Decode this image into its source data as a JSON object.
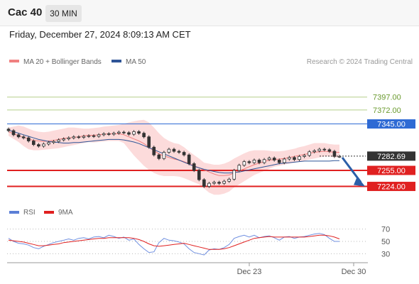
{
  "header": {
    "symbol": "Cac 40",
    "timeframe": "30 MIN",
    "datetime": "Friday, December 27, 2024 8:09:13 AM CET"
  },
  "chart_data": [
    {
      "type": "line",
      "panel": "price",
      "legend": [
        {
          "name": "MA 20 + Bollinger Bands",
          "color": "#f08080"
        },
        {
          "name": "MA 50",
          "color": "#2f5597"
        }
      ],
      "legend_placement": "top-left",
      "credit": "Research © 2024 Trading Central",
      "x_ticks": [
        "Dec 23",
        "Dec 30"
      ],
      "levels": [
        {
          "value": "7397.00",
          "line_color": "#b5cf8a",
          "label_style": "plain",
          "text_color": "#6a9a2e"
        },
        {
          "value": "7372.00",
          "line_color": "#b5cf8a",
          "label_style": "plain",
          "text_color": "#6a9a2e"
        },
        {
          "value": "7345.00",
          "line_color": "#2e6ad4",
          "label_style": "box",
          "box_color": "#2e6ad4"
        },
        {
          "value": "7282.69",
          "line_color": "#333333",
          "label_style": "box",
          "box_color": "#333333",
          "dashed": true
        },
        {
          "value": "7255.00",
          "line_color": "#e02020",
          "label_style": "box",
          "box_color": "#e02020"
        },
        {
          "value": "7224.00",
          "line_color": "#e02020",
          "label_style": "box",
          "box_color": "#e02020"
        }
      ],
      "last_price": 7282.69,
      "arrow": {
        "direction": "down",
        "color": "#2c5fa8"
      },
      "grid": false,
      "close_series": [
        7332,
        7324,
        7320,
        7318,
        7312,
        7305,
        7302,
        7306,
        7309,
        7311,
        7314,
        7316,
        7318,
        7320,
        7319,
        7321,
        7322,
        7321,
        7324,
        7326,
        7325,
        7327,
        7329,
        7328,
        7325,
        7330,
        7327,
        7320,
        7300,
        7285,
        7278,
        7290,
        7296,
        7292,
        7290,
        7285,
        7268,
        7255,
        7237,
        7224,
        7230,
        7232,
        7230,
        7234,
        7238,
        7255,
        7265,
        7272,
        7270,
        7275,
        7270,
        7276,
        7279,
        7275,
        7270,
        7277,
        7280,
        7276,
        7282,
        7284,
        7291,
        7293,
        7296,
        7295,
        7292,
        7282,
        7282
      ],
      "ma20_series": [
        7330,
        7326,
        7322,
        7319,
        7316,
        7313,
        7312,
        7311,
        7312,
        7313,
        7315,
        7317,
        7318,
        7319,
        7320,
        7322,
        7323,
        7323,
        7324,
        7325,
        7326,
        7326,
        7326,
        7324,
        7320,
        7316,
        7312,
        7307,
        7300,
        7293,
        7287,
        7283,
        7280,
        7277,
        7275,
        7272,
        7268,
        7264,
        7260,
        7256,
        7252,
        7248,
        7245,
        7245,
        7246,
        7250,
        7254,
        7258,
        7262,
        7266,
        7269,
        7272,
        7275,
        7276,
        7277,
        7278,
        7280,
        7282,
        7284,
        7286,
        7288,
        7290,
        7291,
        7292,
        7291,
        7290,
        7290
      ],
      "ma50_series": [
        7333,
        7330,
        7327,
        7324,
        7321,
        7318,
        7315,
        7313,
        7311,
        7310,
        7309,
        7308,
        7308,
        7309,
        7309,
        7310,
        7311,
        7312,
        7313,
        7314,
        7315,
        7315,
        7315,
        7314,
        7312,
        7310,
        7307,
        7303,
        7299,
        7295,
        7291,
        7287,
        7283,
        7279,
        7275,
        7271,
        7267,
        7263,
        7260,
        7257,
        7255,
        7253,
        7251,
        7250,
        7250,
        7251,
        7252,
        7254,
        7256,
        7258,
        7260,
        7262,
        7264,
        7266,
        7268,
        7269,
        7270,
        7271,
        7272,
        7273,
        7273,
        7273,
        7273,
        7273,
        7273,
        7274,
        7274
      ],
      "bb_upper": [
        7338,
        7340,
        7342,
        7340,
        7336,
        7332,
        7330,
        7329,
        7330,
        7332,
        7334,
        7336,
        7338,
        7338,
        7337,
        7336,
        7336,
        7337,
        7338,
        7340,
        7341,
        7342,
        7343,
        7345,
        7348,
        7350,
        7352,
        7353,
        7348,
        7338,
        7327,
        7318,
        7312,
        7308,
        7306,
        7300,
        7292,
        7285,
        7278,
        7270,
        7268,
        7266,
        7266,
        7268,
        7272,
        7278,
        7283,
        7288,
        7292,
        7294,
        7294,
        7294,
        7293,
        7292,
        7292,
        7293,
        7295,
        7297,
        7300,
        7302,
        7305,
        7308,
        7308,
        7308,
        7306,
        7305,
        7305
      ],
      "bb_lower": [
        7322,
        7316,
        7310,
        7302,
        7296,
        7294,
        7294,
        7295,
        7296,
        7297,
        7298,
        7300,
        7302,
        7304,
        7306,
        7308,
        7310,
        7309,
        7310,
        7311,
        7312,
        7312,
        7312,
        7308,
        7296,
        7284,
        7274,
        7264,
        7256,
        7250,
        7246,
        7244,
        7244,
        7244,
        7243,
        7240,
        7236,
        7232,
        7228,
        7220,
        7212,
        7208,
        7208,
        7210,
        7214,
        7222,
        7228,
        7234,
        7240,
        7246,
        7250,
        7254,
        7258,
        7262,
        7264,
        7266,
        7268,
        7270,
        7272,
        7274,
        7276,
        7278,
        7280,
        7282,
        7282,
        7280,
        7280
      ],
      "ylim": [
        7200,
        7420
      ]
    },
    {
      "type": "line",
      "panel": "indicator",
      "legend": [
        {
          "name": "RSI",
          "color": "#5b7fd6"
        },
        {
          "name": "9MA",
          "color": "#e02020"
        }
      ],
      "y_ticks": [
        70,
        50,
        30
      ],
      "ylim": [
        20,
        80
      ],
      "rsi_series": [
        55,
        50,
        47,
        46,
        44,
        40,
        38,
        42,
        45,
        48,
        50,
        52,
        54,
        52,
        55,
        56,
        54,
        57,
        58,
        56,
        60,
        58,
        55,
        57,
        52,
        54,
        45,
        38,
        32,
        33,
        48,
        55,
        52,
        51,
        49,
        46,
        38,
        32,
        30,
        28,
        36,
        38,
        37,
        40,
        45,
        55,
        58,
        60,
        57,
        60,
        56,
        58,
        59,
        56,
        52,
        57,
        58,
        55,
        57,
        58,
        60,
        62,
        63,
        61,
        55,
        50,
        50
      ],
      "ma9_series": [
        52,
        51,
        50,
        49,
        47,
        45,
        43,
        43,
        44,
        45,
        46,
        48,
        49,
        50,
        51,
        52,
        53,
        54,
        55,
        55,
        56,
        56,
        56,
        56,
        56,
        55,
        53,
        50,
        46,
        43,
        42,
        43,
        44,
        45,
        46,
        47,
        45,
        43,
        41,
        39,
        37,
        37,
        37,
        38,
        40,
        43,
        46,
        49,
        52,
        55,
        56,
        57,
        58,
        57,
        57,
        57,
        57,
        57,
        57,
        57,
        58,
        59,
        60,
        60,
        59,
        57,
        54
      ]
    }
  ]
}
